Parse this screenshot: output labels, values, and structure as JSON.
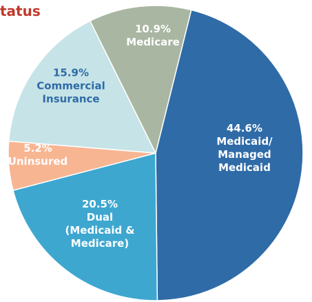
{
  "chart_data": {
    "type": "pie",
    "title": "tatus",
    "title_color": "#c0392b",
    "categories": [
      "Medicaid/\nManaged Medicaid",
      "Dual\n(Medicaid &\nMedicare)",
      "Uninsured",
      "Commercial\nInsurance",
      "Medicare"
    ],
    "values": [
      44.6,
      20.5,
      5.2,
      15.9,
      10.9
    ],
    "value_labels": [
      "44.6%",
      "20.5%",
      "5.2%",
      "15.9%",
      "10.9%"
    ],
    "colors": [
      "#2f6ba7",
      "#3ea7d0",
      "#f8b592",
      "#c6e4e7",
      "#a9b6a1"
    ],
    "label_colors": [
      "#ffffff",
      "#ffffff",
      "#ffffff",
      "#2f6ba7",
      "#ffffff"
    ]
  }
}
